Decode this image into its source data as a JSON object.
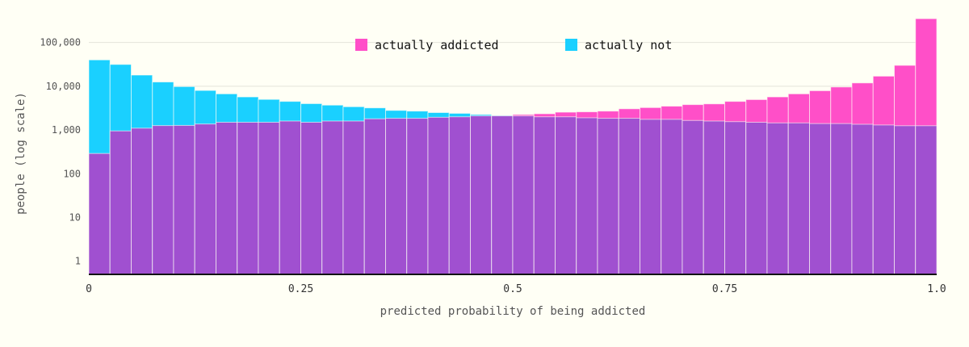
{
  "chart_data": {
    "type": "bar",
    "title": "",
    "xlabel": "predicted probability of being addicted",
    "ylabel": "people (log scale)",
    "y_scale": "log",
    "ylim": [
      0.5,
      400000
    ],
    "xlim": [
      0,
      1
    ],
    "x_ticks": [
      {
        "value": 0,
        "label": "0"
      },
      {
        "value": 0.25,
        "label": "0.25"
      },
      {
        "value": 0.5,
        "label": "0.5"
      },
      {
        "value": 0.75,
        "label": "0.75"
      },
      {
        "value": 1,
        "label": "1.0"
      }
    ],
    "y_ticks": [
      {
        "value": 1,
        "label": "1"
      },
      {
        "value": 10,
        "label": "10"
      },
      {
        "value": 100,
        "label": "100"
      },
      {
        "value": 1000,
        "label": "1,000"
      },
      {
        "value": 10000,
        "label": "10,000"
      },
      {
        "value": 100000,
        "label": "100,000"
      }
    ],
    "grid": true,
    "legend_position": "top",
    "overlay": true,
    "bin_width": 0.025,
    "bin_starts": [
      0,
      0.025,
      0.05,
      0.075,
      0.1,
      0.125,
      0.15,
      0.175,
      0.2,
      0.225,
      0.25,
      0.275,
      0.3,
      0.325,
      0.35,
      0.375,
      0.4,
      0.425,
      0.45,
      0.475,
      0.5,
      0.525,
      0.55,
      0.575,
      0.6,
      0.625,
      0.65,
      0.675,
      0.7,
      0.725,
      0.75,
      0.775,
      0.8,
      0.825,
      0.85,
      0.875,
      0.9,
      0.925,
      0.95,
      0.975
    ],
    "series": [
      {
        "name": "actually addicted",
        "color": "#ff4fc8",
        "values": [
          290,
          950,
          1100,
          1260,
          1270,
          1370,
          1500,
          1500,
          1500,
          1600,
          1500,
          1600,
          1600,
          1800,
          1850,
          1850,
          1950,
          2000,
          2100,
          2100,
          2250,
          2350,
          2550,
          2600,
          2700,
          3050,
          3250,
          3500,
          3800,
          3950,
          4500,
          4950,
          5700,
          6700,
          7900,
          9600,
          11900,
          17000,
          30000,
          350000
        ]
      },
      {
        "name": "actually not",
        "color": "#1ad0ff",
        "values": [
          40000,
          31500,
          18000,
          12500,
          9800,
          8000,
          6700,
          5700,
          5000,
          4500,
          4000,
          3700,
          3400,
          3200,
          2800,
          2700,
          2500,
          2400,
          2250,
          2150,
          2100,
          2000,
          2000,
          1900,
          1850,
          1850,
          1750,
          1750,
          1650,
          1600,
          1550,
          1500,
          1450,
          1450,
          1400,
          1400,
          1350,
          1300,
          1250,
          1250
        ]
      }
    ]
  }
}
